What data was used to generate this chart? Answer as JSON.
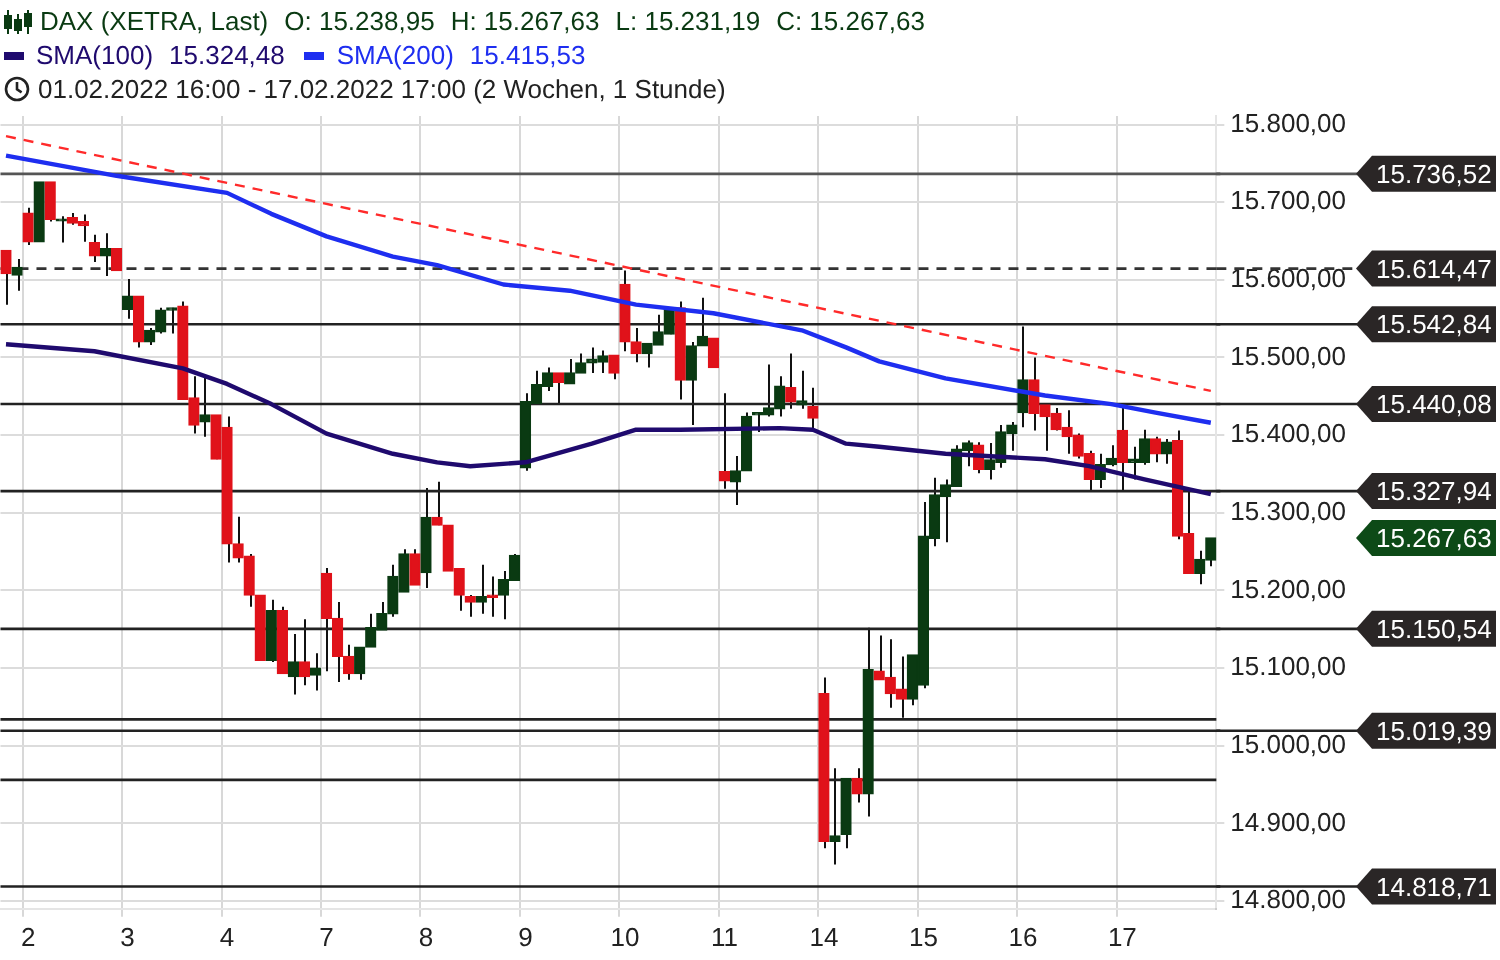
{
  "chart_data": {
    "type": "candlestick",
    "subtitle": "01.02.2022 16:00 - 17.02.2022 17:00  (2 Wochen, 1 Stunde)",
    "categories": [
      null,
      null,
      "2",
      null,
      null,
      null,
      null,
      null,
      null,
      null,
      null,
      "3",
      null,
      null,
      null,
      null,
      null,
      null,
      null,
      null,
      "4",
      null,
      null,
      null,
      null,
      null,
      null,
      null,
      null,
      "7",
      null,
      null,
      null,
      null,
      null,
      null,
      null,
      null,
      "8",
      null,
      null,
      null,
      null,
      null,
      null,
      null,
      null,
      "9",
      null,
      null,
      null,
      null,
      null,
      null,
      null,
      null,
      "10",
      null,
      null,
      null,
      null,
      null,
      null,
      null,
      null,
      "11",
      null,
      null,
      null,
      null,
      null,
      null,
      null,
      null,
      "14",
      null,
      null,
      null,
      null,
      null,
      null,
      null,
      null,
      "15",
      null,
      null,
      null,
      null,
      null,
      null,
      null,
      null,
      "16",
      null,
      null,
      null,
      null,
      null,
      null,
      null,
      null,
      "17",
      null,
      null,
      null,
      null,
      null,
      null,
      null,
      null
    ],
    "series": [
      {
        "name": "DAX (XETRA, Last)",
        "color": "#0a3a12",
        "value_labels": [
          null,
          null,
          null,
          null,
          null,
          null,
          null,
          null,
          null,
          null,
          null,
          null,
          null,
          null,
          null,
          null,
          null,
          null,
          null,
          null,
          null,
          null,
          null,
          null,
          null,
          null,
          null,
          null,
          null,
          null,
          null,
          null,
          null,
          null,
          null,
          null,
          null,
          null,
          null,
          null,
          null,
          null,
          null,
          null,
          null,
          null,
          null,
          null,
          null,
          null,
          null,
          null,
          null,
          null,
          null,
          null,
          null,
          null,
          null,
          null,
          null,
          null,
          null,
          null,
          null,
          null,
          null,
          null,
          null,
          null,
          null,
          null,
          null,
          null,
          null,
          null,
          null,
          null,
          null,
          null,
          null,
          null,
          null,
          null,
          null,
          null,
          null,
          null,
          null,
          null,
          null,
          null,
          null,
          null,
          null,
          null,
          null,
          null,
          null,
          null,
          null,
          null,
          null,
          null,
          null,
          null,
          null,
          null,
          null,
          "15.267,63"
        ],
        "colors": [
          "#e0121a",
          "#0a3a12",
          "#e0121a",
          "#0a3a12",
          "#e0121a",
          "#0a3a12",
          "#e0121a",
          "#e0121a",
          "#e0121a",
          "#0a3a12",
          "#e0121a",
          "#0a3a12",
          "#e0121a",
          "#0a3a12",
          "#0a3a12",
          "#0a3a12",
          "#e0121a",
          "#e0121a",
          "#0a3a12",
          "#e0121a",
          "#e0121a",
          "#e0121a",
          "#e0121a",
          "#e0121a",
          "#0a3a12",
          "#e0121a",
          "#0a3a12",
          "#e0121a",
          "#0a3a12",
          "#e0121a",
          "#e0121a",
          "#e0121a",
          "#0a3a12",
          "#0a3a12",
          "#0a3a12",
          "#0a3a12",
          "#0a3a12",
          "#e0121a",
          "#0a3a12",
          "#e0121a",
          "#e0121a",
          "#e0121a",
          "#e0121a",
          "#0a3a12",
          "#e0121a",
          "#0a3a12",
          "#0a3a12",
          "#0a3a12",
          "#0a3a12",
          "#0a3a12",
          "#e0121a",
          "#0a3a12",
          "#0a3a12",
          "#0a3a12",
          "#0a3a12",
          "#e0121a",
          "#e0121a",
          "#e0121a",
          "#0a3a12",
          "#0a3a12",
          "#0a3a12",
          "#e0121a",
          "#0a3a12",
          "#0a3a12",
          "#e0121a",
          "#e0121a",
          "#0a3a12",
          "#0a3a12",
          "#0a3a12",
          "#0a3a12",
          "#0a3a12",
          "#e0121a",
          "#0a3a12",
          "#e0121a",
          "#e0121a",
          "#0a3a12",
          "#0a3a12",
          "#e0121a",
          "#0a3a12",
          "#e0121a",
          "#e0121a",
          "#e0121a",
          "#0a3a12",
          "#0a3a12",
          "#0a3a12",
          "#0a3a12",
          "#0a3a12",
          "#0a3a12",
          "#e0121a",
          "#0a3a12",
          "#0a3a12",
          "#0a3a12",
          "#0a3a12",
          "#e0121a",
          "#e0121a",
          "#e0121a",
          "#e0121a",
          "#e0121a",
          "#e0121a",
          "#0a3a12",
          "#0a3a12",
          "#e0121a",
          "#0a3a12",
          "#0a3a12",
          "#e0121a",
          "#0a3a12",
          "#e0121a",
          "#e0121a",
          "#0a3a12",
          "#0a3a12"
        ],
        "ohlc": [
          [
            15638,
            15638,
            15568,
            15608
          ],
          [
            15606,
            15627,
            15586,
            15616
          ],
          [
            15686,
            15693,
            15645,
            15649
          ],
          [
            15649,
            15726,
            15649,
            15726
          ],
          [
            15726,
            15726,
            15675,
            15678
          ],
          [
            15676,
            15682,
            15648,
            15678
          ],
          [
            15680,
            15686,
            15671,
            15673
          ],
          [
            15675,
            15684,
            15649,
            15670
          ],
          [
            15648,
            15658,
            15623,
            15631
          ],
          [
            15631,
            15660,
            15605,
            15640
          ],
          [
            15640,
            15640,
            15612,
            15612
          ],
          [
            15562,
            15601,
            15550,
            15579
          ],
          [
            15579,
            15579,
            15513,
            15520
          ],
          [
            15520,
            15538,
            15516,
            15535
          ],
          [
            15533,
            15564,
            15531,
            15561
          ],
          [
            15561,
            15564,
            15531,
            15564
          ],
          [
            15566,
            15572,
            15446,
            15446
          ],
          [
            15448,
            15476,
            15402,
            15413
          ],
          [
            15417,
            15476,
            15398,
            15426
          ],
          [
            15426,
            15426,
            15369,
            15369
          ],
          [
            15410,
            15424,
            15236,
            15260
          ],
          [
            15260,
            15295,
            15236,
            15242
          ],
          [
            15244,
            15247,
            15179,
            15194
          ],
          [
            15194,
            15194,
            15110,
            15110
          ],
          [
            15110,
            15188,
            15108,
            15174
          ],
          [
            15174,
            15179,
            15093,
            15093
          ],
          [
            15089,
            15144,
            15066,
            15108
          ],
          [
            15108,
            15163,
            15078,
            15089
          ],
          [
            15091,
            15119,
            15071,
            15100
          ],
          [
            15222,
            15229,
            15096,
            15164
          ],
          [
            15164,
            15185,
            15082,
            15115
          ],
          [
            15115,
            15130,
            15085,
            15093
          ],
          [
            15093,
            15127,
            15085,
            15127
          ],
          [
            15127,
            15170,
            15127,
            15152
          ],
          [
            15149,
            15185,
            15149,
            15170
          ],
          [
            15170,
            15233,
            15166,
            15218
          ],
          [
            15198,
            15253,
            15198,
            15247
          ],
          [
            15247,
            15253,
            15207,
            15207
          ],
          [
            15223,
            15332,
            15203,
            15294
          ],
          [
            15294,
            15340,
            15284,
            15284
          ],
          [
            15284,
            15284,
            15225,
            15225
          ],
          [
            15228,
            15228,
            15174,
            15194
          ],
          [
            15192,
            15194,
            15166,
            15185
          ],
          [
            15185,
            15233,
            15170,
            15192
          ],
          [
            15194,
            15218,
            15166,
            15191
          ],
          [
            15194,
            15225,
            15163,
            15214
          ],
          [
            15213,
            15247,
            15213,
            15245
          ],
          [
            15358,
            15454,
            15354,
            15443
          ],
          [
            15441,
            15483,
            15441,
            15465
          ],
          [
            15463,
            15487,
            15457,
            15480
          ],
          [
            15480,
            15480,
            15441,
            15468
          ],
          [
            15466,
            15498,
            15466,
            15480
          ],
          [
            15480,
            15505,
            15480,
            15493
          ],
          [
            15493,
            15513,
            15480,
            15498
          ],
          [
            15494,
            15509,
            15480,
            15502
          ],
          [
            15503,
            15503,
            15472,
            15480
          ],
          [
            15594,
            15612,
            15508,
            15520
          ],
          [
            15520,
            15538,
            15494,
            15505
          ],
          [
            15505,
            15518,
            15487,
            15518
          ],
          [
            15516,
            15555,
            15516,
            15533
          ],
          [
            15530,
            15564,
            15530,
            15564
          ],
          [
            15564,
            15572,
            15446,
            15471
          ],
          [
            15471,
            15520,
            15413,
            15515
          ],
          [
            15515,
            15577,
            15515,
            15527
          ],
          [
            15525,
            15525,
            15487,
            15487
          ],
          [
            15353,
            15454,
            15331,
            15341
          ],
          [
            15340,
            15373,
            15310,
            15354
          ],
          [
            15354,
            15429,
            15354,
            15424
          ],
          [
            15426,
            15429,
            15404,
            15429
          ],
          [
            15426,
            15491,
            15424,
            15435
          ],
          [
            15434,
            15476,
            15424,
            15463
          ],
          [
            15461,
            15505,
            15434,
            15443
          ],
          [
            15439,
            15483,
            15434,
            15444
          ],
          [
            15437,
            15461,
            15406,
            15422
          ],
          [
            15067,
            15088,
            14868,
            14877
          ],
          [
            14877,
            14971,
            14847,
            14884
          ],
          [
            14886,
            14958,
            14868,
            14958
          ],
          [
            14958,
            14971,
            14927,
            14938
          ],
          [
            14938,
            15152,
            14909,
            15098
          ],
          [
            15096,
            15142,
            15085,
            15085
          ],
          [
            15088,
            15137,
            15049,
            15067
          ],
          [
            15073,
            15115,
            15036,
            15060
          ],
          [
            15060,
            15117,
            15052,
            15117
          ],
          [
            15078,
            15314,
            15074,
            15270
          ],
          [
            15267,
            15345,
            15257,
            15323
          ],
          [
            15321,
            15343,
            15262,
            15336
          ],
          [
            15334,
            15387,
            15334,
            15382
          ],
          [
            15380,
            15393,
            15360,
            15390
          ],
          [
            15387,
            15391,
            15351,
            15356
          ],
          [
            15356,
            15390,
            15343,
            15368
          ],
          [
            15365,
            15413,
            15358,
            15404
          ],
          [
            15402,
            15417,
            15380,
            15413
          ],
          [
            15429,
            15540,
            15410,
            15471
          ],
          [
            15471,
            15500,
            15406,
            15428
          ],
          [
            15439,
            15439,
            15380,
            15424
          ],
          [
            15428,
            15435,
            15406,
            15407
          ],
          [
            15410,
            15432,
            15376,
            15398
          ],
          [
            15400,
            15402,
            15370,
            15373
          ],
          [
            15376,
            15380,
            15329,
            15343
          ],
          [
            15343,
            15376,
            15332,
            15362
          ],
          [
            15362,
            15387,
            15360,
            15370
          ],
          [
            15406,
            15439,
            15329,
            15365
          ],
          [
            15365,
            15385,
            15343,
            15369
          ],
          [
            15365,
            15407,
            15362,
            15395
          ],
          [
            15395,
            15398,
            15365,
            15376
          ],
          [
            15376,
            15395,
            15363,
            15391
          ],
          [
            15393,
            15406,
            15266,
            15270
          ],
          [
            15273,
            15332,
            15222,
            15222
          ],
          [
            15222,
            15251,
            15208,
            15240
          ],
          [
            15238.95,
            15267.63,
            15231.19,
            15267.63
          ]
        ]
      },
      {
        "name": "SMA(100)",
        "type": "line",
        "color": "#1f0a6e",
        "values": [
          15517,
          null,
          null,
          null,
          null,
          null,
          null,
          null,
          15508,
          null,
          null,
          null,
          null,
          null,
          null,
          null,
          15486,
          null,
          null,
          null,
          15466,
          null,
          null,
          null,
          15440,
          null,
          null,
          null,
          null,
          15402,
          null,
          null,
          null,
          null,
          null,
          15376,
          null,
          null,
          null,
          15365,
          null,
          null,
          15360,
          null,
          null,
          null,
          null,
          15365,
          null,
          null,
          null,
          null,
          null,
          15389,
          null,
          null,
          null,
          15407,
          null,
          null,
          null,
          15407,
          null,
          null,
          null,
          null,
          null,
          null,
          null,
          null,
          15409,
          null,
          null,
          15407,
          null,
          null,
          15389,
          null,
          null,
          15385,
          null,
          null,
          null,
          null,
          null,
          15376,
          null,
          null,
          null,
          null,
          null,
          null,
          null,
          null,
          15369,
          null,
          null,
          null,
          15360,
          null,
          null,
          null,
          null,
          15343,
          null,
          null,
          null,
          null,
          null,
          15324
        ]
      },
      {
        "name": "SMA(200)",
        "type": "line",
        "color": "#1e2ef0",
        "values": [
          15760,
          null,
          null,
          null,
          null,
          null,
          null,
          null,
          null,
          null,
          15734,
          null,
          null,
          null,
          null,
          null,
          null,
          null,
          null,
          null,
          15712,
          null,
          null,
          null,
          15685,
          null,
          null,
          null,
          null,
          15656,
          null,
          null,
          null,
          null,
          null,
          15630,
          null,
          null,
          null,
          15619,
          null,
          null,
          null,
          null,
          null,
          15594,
          null,
          null,
          null,
          null,
          null,
          15586,
          null,
          null,
          null,
          null,
          null,
          15568,
          null,
          null,
          null,
          null,
          null,
          null,
          15557,
          null,
          null,
          null,
          null,
          null,
          null,
          null,
          15535,
          null,
          null,
          null,
          15513,
          null,
          null,
          15495,
          null,
          null,
          null,
          null,
          null,
          15473,
          null,
          null,
          null,
          null,
          null,
          null,
          null,
          null,
          15451,
          null,
          null,
          null,
          null,
          null,
          15440,
          null,
          null,
          null,
          15429,
          null,
          null,
          null,
          null,
          15416
        ]
      },
      {
        "type": "line",
        "color": "#ff2a2a",
        "line_style": "dashed",
        "values": [
          15785,
          null,
          null,
          null,
          null,
          null,
          null,
          null,
          null,
          null,
          null,
          null,
          null,
          null,
          null,
          null,
          null,
          null,
          null,
          null,
          null,
          null,
          null,
          null,
          null,
          null,
          null,
          null,
          null,
          null,
          null,
          null,
          null,
          null,
          null,
          null,
          null,
          null,
          null,
          null,
          null,
          null,
          null,
          null,
          null,
          null,
          null,
          null,
          null,
          null,
          null,
          null,
          null,
          null,
          null,
          null,
          null,
          null,
          null,
          null,
          null,
          null,
          null,
          null,
          null,
          null,
          null,
          null,
          null,
          null,
          null,
          null,
          null,
          null,
          null,
          null,
          null,
          null,
          null,
          null,
          null,
          null,
          null,
          null,
          null,
          null,
          null,
          null,
          null,
          null,
          null,
          null,
          null,
          null,
          null,
          null,
          null,
          null,
          null,
          null,
          null,
          null,
          null,
          null,
          null,
          null,
          null,
          null,
          null,
          15457
        ]
      }
    ],
    "ylim": [
      14790,
      15811
    ],
    "yticks": [
      {
        "value": 14800,
        "label": "14.800,00"
      },
      {
        "value": 14900,
        "label": "14.900,00"
      },
      {
        "value": 15000,
        "label": "15.000,00"
      },
      {
        "value": 15100,
        "label": "15.100,00"
      },
      {
        "value": 15200,
        "label": "15.200,00"
      },
      {
        "value": 15300,
        "label": "15.300,00"
      },
      {
        "value": 15400,
        "label": "15.400,00"
      },
      {
        "value": 15500,
        "label": "15.500,00"
      },
      {
        "value": 15600,
        "label": "15.600,00"
      },
      {
        "value": 15700,
        "label": "15.700,00"
      },
      {
        "value": 15800,
        "label": "15.800,00"
      }
    ],
    "ref_lines": [
      {
        "axis": "y",
        "value": 15736.52,
        "label": "15.736,52",
        "color": "#555555"
      },
      {
        "axis": "y",
        "value": 15614.47,
        "label": "15.614,47",
        "color": "#333333",
        "line_style": "dashed"
      },
      {
        "axis": "y",
        "value": 15542.84,
        "label": "15.542,84",
        "color": "#222222"
      },
      {
        "axis": "y",
        "value": 15440.08,
        "label": "15.440,08",
        "color": "#222222"
      },
      {
        "axis": "y",
        "value": 15327.94,
        "label": "15.327,94",
        "color": "#222222"
      },
      {
        "axis": "y",
        "value": 15150.54,
        "label": "15.150,54",
        "color": "#222222"
      },
      {
        "axis": "y",
        "value": 15034,
        "color": "#222222"
      },
      {
        "axis": "y",
        "value": 15019.39,
        "label": "15.019,39",
        "color": "#222222"
      },
      {
        "axis": "y",
        "value": 14956,
        "color": "#222222"
      },
      {
        "axis": "y",
        "value": 14818.71,
        "label": "14.818,71",
        "color": "#222222"
      }
    ],
    "annotations": [
      "O: 15.238,95",
      "H: 15.267,63",
      "L: 15.231,19",
      "C: 15.267,63",
      "15.324,48",
      "15.415,53"
    ],
    "grid": true,
    "legend": "top left"
  }
}
